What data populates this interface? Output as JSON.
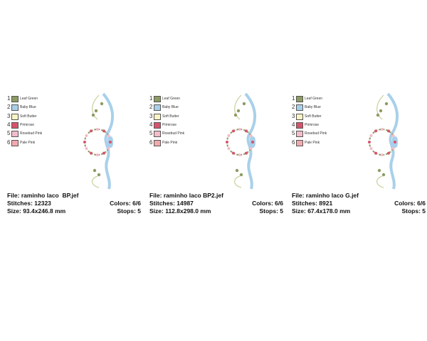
{
  "panels": [
    {
      "colors": [
        {
          "number": 1,
          "name": "Leaf Green",
          "color": "#8c9c62"
        },
        {
          "number": 2,
          "name": "Baby Blue",
          "color": "#a9d0ea"
        },
        {
          "number": 3,
          "name": "Soft Butter",
          "color": "#fbf5c4"
        },
        {
          "number": 4,
          "name": "Primrose",
          "color": "#d6536c"
        },
        {
          "number": 5,
          "name": "Rosebud Pink",
          "color": "#f3bccb"
        },
        {
          "number": 6,
          "name": "Pale Pink",
          "color": "#f2a9ae"
        }
      ],
      "file": "File: raminho laco  BP.jef",
      "stitches": "Stitches: 12323",
      "size": "Size: 93.4x246.8 mm",
      "colors_count": "Colors: 6/6",
      "stops": "Stops: 5"
    },
    {
      "colors": [
        {
          "number": 1,
          "name": "Leaf Green",
          "color": "#8c9c62"
        },
        {
          "number": 2,
          "name": "Baby Blue",
          "color": "#a9d0ea"
        },
        {
          "number": 3,
          "name": "Soft Butter",
          "color": "#fbf5c4"
        },
        {
          "number": 4,
          "name": "Primrose",
          "color": "#d6536c"
        },
        {
          "number": 5,
          "name": "Rosebud Pink",
          "color": "#f3bccb"
        },
        {
          "number": 6,
          "name": "Pale Pink",
          "color": "#f2a9ae"
        }
      ],
      "file": "File: raminho laco BP2.jef",
      "stitches": "Stitches: 14987",
      "size": "Size: 112.8x298.0 mm",
      "colors_count": "Colors: 6/6",
      "stops": "Stops: 5"
    },
    {
      "colors": [
        {
          "number": 1,
          "name": "Leaf Green",
          "color": "#8c9c62"
        },
        {
          "number": 2,
          "name": "Baby Blue",
          "color": "#a9d0ea"
        },
        {
          "number": 3,
          "name": "Soft Butter",
          "color": "#fbf5c4"
        },
        {
          "number": 4,
          "name": "Primrose",
          "color": "#d6536c"
        },
        {
          "number": 5,
          "name": "Rosebud Pink",
          "color": "#f3bccb"
        },
        {
          "number": 6,
          "name": "Pale Pink",
          "color": "#f2a9ae"
        }
      ],
      "file": "File: raminho laco G.jef",
      "stitches": "Stitches: 8921",
      "size": "Size: 67.4x178.0 mm",
      "colors_count": "Colors: 6/6",
      "stops": "Stops: 5"
    }
  ]
}
